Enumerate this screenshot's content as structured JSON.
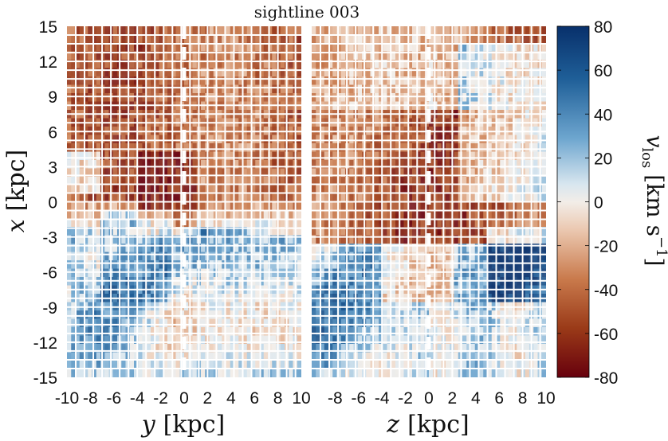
{
  "chart_data": {
    "type": "heatmap",
    "title": "sightline 003",
    "panels": [
      {
        "name": "left",
        "xlabel": "y [kpc]",
        "xlabel_var": "y",
        "xlabel_unit": "[kpc]",
        "xlim": [
          -10,
          10
        ],
        "ylim": [
          -15,
          15
        ],
        "xticks": [
          -10,
          -8,
          -6,
          -4,
          -2,
          0,
          2,
          4,
          6,
          8,
          10
        ],
        "xtick_labels": [
          "-10",
          "-8",
          "-6",
          "-4",
          "-2",
          "0",
          "2",
          "4",
          "6",
          "8",
          "10"
        ]
      },
      {
        "name": "right",
        "xlabel": "z [kpc]",
        "xlabel_var": "z",
        "xlabel_unit": "[kpc]",
        "xlim": [
          -10,
          10
        ],
        "ylim": [
          -15,
          15
        ],
        "xticks": [
          -8,
          -6,
          -4,
          -2,
          0,
          2,
          4,
          6,
          8,
          10
        ],
        "xtick_labels": [
          "-8",
          "-6",
          "-4",
          "-2",
          "0",
          "2",
          "4",
          "6",
          "8",
          "10"
        ]
      }
    ],
    "ylabel": "x [kpc]",
    "ylabel_var": "x",
    "ylabel_unit": "[kpc]",
    "yticks": [
      15,
      12,
      9,
      6,
      3,
      0,
      -3,
      -6,
      -9,
      -12,
      -15
    ],
    "ytick_labels": [
      "15",
      "12",
      "9",
      "6",
      "3",
      "0",
      "-3",
      "-6",
      "-9",
      "-12",
      "-15"
    ],
    "colorbar": {
      "label": "v_los [km s^-1]",
      "label_var": "v",
      "label_sub": "los",
      "label_unit_open": "[km s",
      "label_unit_exp": "−1",
      "label_unit_close": "]",
      "range": [
        -80,
        80
      ],
      "ticks": [
        80,
        60,
        40,
        20,
        0,
        -20,
        -40,
        -60,
        -80
      ],
      "tick_labels": [
        "80",
        "60",
        "40",
        "20",
        "0",
        "-20",
        "-40",
        "-60",
        "-80"
      ],
      "colormap": "diverging red-white-blue",
      "colors": {
        "max": "#08306b",
        "mid": "#f2ede8",
        "min": "#67000d"
      }
    },
    "grid": true,
    "midline": "dashed white line at 0"
  }
}
